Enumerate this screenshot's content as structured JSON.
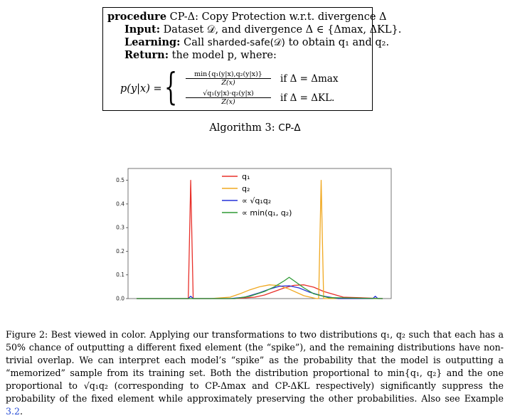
{
  "algorithm": {
    "line1_keyword": "procedure",
    "line1_text": "CP-Δ: Copy Protection w.r.t. divergence Δ",
    "input_keyword": "Input:",
    "input_text": "Dataset 𝒟, and divergence Δ ∈ {Δmax, ΔKL}.",
    "learning_keyword": "Learning:",
    "learning_call": "Call",
    "learning_fn": "sharded-safe(𝒟)",
    "learning_tail": "to obtain q₁ and q₂.",
    "return_keyword": "Return:",
    "return_text": "the model p, where:",
    "formula_lhs": "p(y|x) =",
    "case1_num": "min{q₁(y|x),q₂(y|x)}",
    "case1_den": "Z(x)",
    "case1_cond": "if Δ = Δmax",
    "case2_num": "√q₁(y|x)·q₂(y|x)",
    "case2_den": "Z(x)",
    "case2_cond": "if Δ = ΔKL.",
    "caption_prefix": "Algorithm 3:",
    "caption_name": "CP-Δ"
  },
  "chart_data": {
    "type": "line",
    "ylim": [
      0.0,
      0.55
    ],
    "yticks": [
      "0.0",
      "0.1",
      "0.2",
      "0.3",
      "0.4",
      "0.5"
    ],
    "legend_position": "top-center",
    "series": [
      {
        "name": "q₁",
        "color": "#e8302a",
        "x": [
          0,
          21,
          22,
          23,
          24,
          25,
          40,
          48,
          52,
          56,
          60,
          64,
          68,
          72,
          76,
          84,
          100
        ],
        "y": [
          0,
          0,
          0.5,
          0,
          0,
          0,
          0,
          0.006,
          0.015,
          0.03,
          0.045,
          0.056,
          0.058,
          0.048,
          0.03,
          0.006,
          0
        ]
      },
      {
        "name": "q₂",
        "color": "#f0a820",
        "x": [
          0,
          30,
          38,
          42,
          46,
          50,
          54,
          58,
          62,
          68,
          73,
          74,
          75,
          76,
          77,
          100
        ],
        "y": [
          0,
          0,
          0.006,
          0.02,
          0.037,
          0.05,
          0.058,
          0.055,
          0.04,
          0.012,
          0,
          0,
          0.5,
          0,
          0,
          0
        ]
      },
      {
        "name": "∝ √q₁q₂",
        "color": "#2530d8",
        "x": [
          0,
          21,
          22,
          23,
          38,
          44,
          50,
          54,
          58,
          62,
          66,
          70,
          76,
          82,
          96,
          97,
          98,
          100
        ],
        "y": [
          0,
          0,
          0.01,
          0,
          0,
          0.006,
          0.025,
          0.04,
          0.052,
          0.054,
          0.045,
          0.028,
          0.01,
          0,
          0,
          0.01,
          0,
          0
        ]
      },
      {
        "name": "∝ min(q₁, q₂)",
        "color": "#2e9a35",
        "x": [
          0,
          40,
          46,
          52,
          56,
          60,
          62,
          64,
          68,
          72,
          78,
          100
        ],
        "y": [
          0,
          0,
          0.01,
          0.03,
          0.05,
          0.075,
          0.09,
          0.075,
          0.045,
          0.02,
          0.004,
          0
        ]
      }
    ]
  },
  "figure_caption": {
    "p1": "Figure 2: Best viewed in color. Applying our transformations to two distributions q₁, q₂ such that each has a 50% chance of outputting a different fixed element (the “spike”), and the remaining distributions have non-trivial overlap. We can interpret each model’s “spike” as the probability that the model is outputting a “memorized” sample from its training set. Both the distribution proportional to min{q₁, q₂} and the one proportional to √q₁q₂ (corresponding to CP-Δmax and CP-ΔKL respectively) significantly suppress the probability of the fixed element while approximately preserving the other probabilities. Also see Example",
    "ref": "3.2",
    "end": "."
  }
}
